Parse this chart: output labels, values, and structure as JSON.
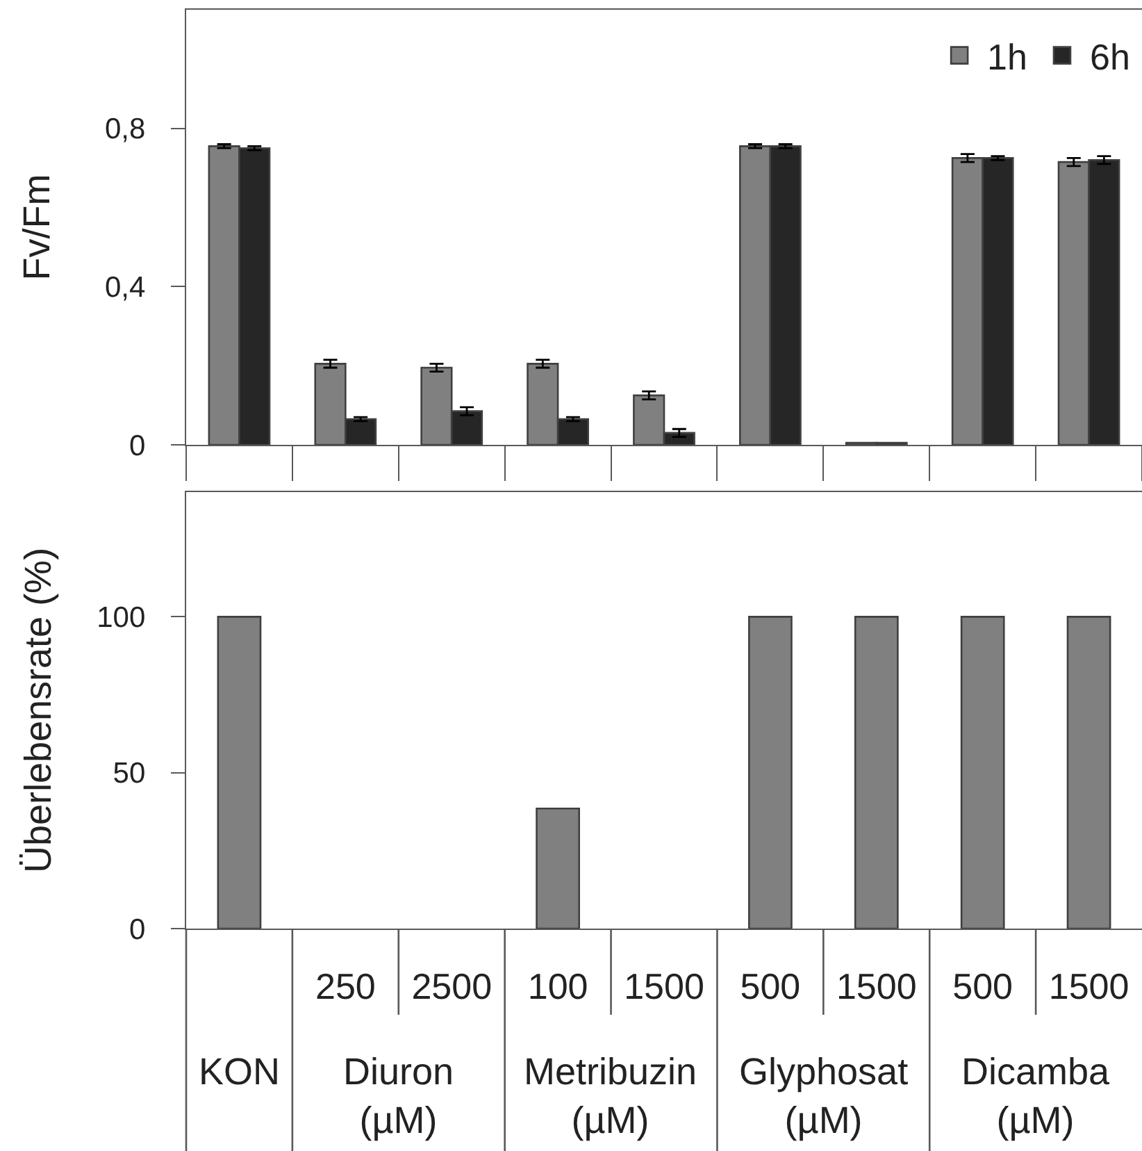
{
  "chart_data": [
    {
      "type": "bar",
      "ylabel": "Fv/Fm",
      "categories": [
        null,
        "250",
        "2500",
        "100",
        "1500",
        "500",
        "1500",
        "500",
        "1500"
      ],
      "series": [
        {
          "name": "1h",
          "color": "#808080",
          "values": [
            0.755,
            0.205,
            0.195,
            0.205,
            0.125,
            0.755,
            0.005,
            0.725,
            0.715
          ],
          "errors": [
            0.005,
            0.01,
            0.01,
            0.01,
            0.01,
            0.005,
            null,
            0.01,
            0.01
          ]
        },
        {
          "name": "6h",
          "color": "#262626",
          "values": [
            0.75,
            0.065,
            0.085,
            0.065,
            0.03,
            0.755,
            0.005,
            0.725,
            0.72
          ],
          "errors": [
            0.005,
            0.005,
            0.01,
            0.005,
            0.01,
            0.005,
            null,
            0.005,
            0.01
          ]
        }
      ],
      "ylim": [
        0,
        1.1
      ],
      "yticks": [
        0,
        {
          "value": 0.4,
          "label": "0,4"
        },
        {
          "value": 0.8,
          "label": "0,8"
        }
      ],
      "legend": "top right",
      "tick_labels": "y"
    },
    {
      "type": "bar",
      "ylabel": "Überlebensrate (%)",
      "categories": [
        null,
        "250",
        "2500",
        "100",
        "1500",
        "500",
        "1500",
        "500",
        "1500"
      ],
      "values": [
        100,
        0,
        0,
        38.5,
        0,
        100,
        100,
        100,
        100
      ],
      "color": "#808080",
      "ylim": [
        0,
        140
      ],
      "yticks": [
        0,
        50,
        100
      ],
      "annotations": [
        "KON",
        "Diuron (µM)",
        "Metribuzin (µM)",
        "Glyphosat (µM)",
        "Dicamba (µM)"
      ]
    }
  ]
}
